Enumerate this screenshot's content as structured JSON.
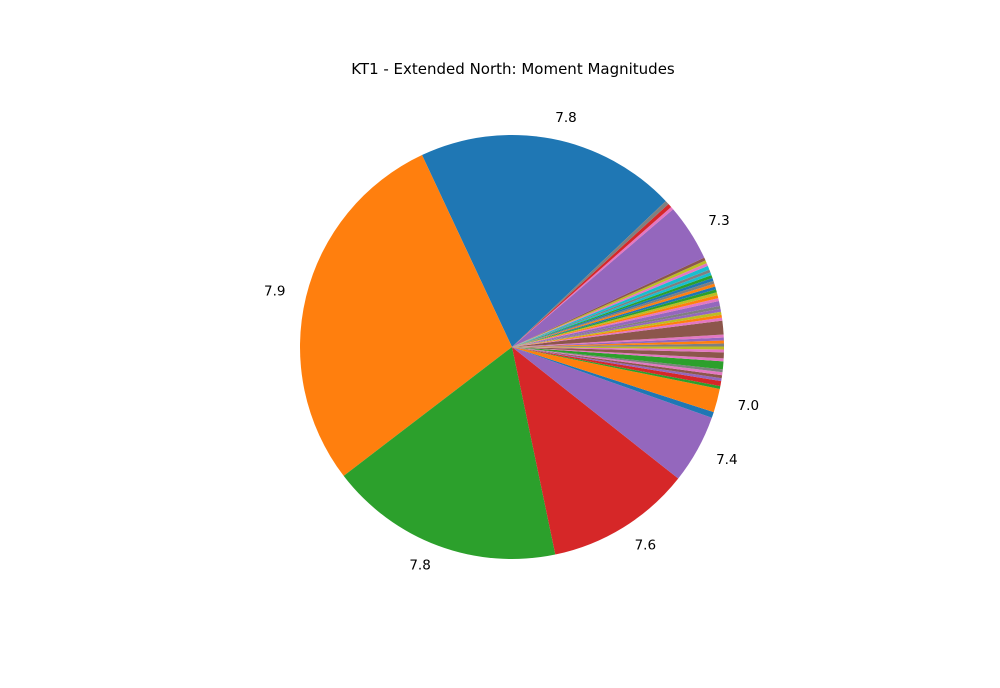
{
  "chart_data": {
    "type": "pie",
    "title": "KT1 - Extended North: Moment Magnitudes",
    "start_angle_deg": 43.5,
    "direction": "counterclockwise",
    "wedges": [
      {
        "value": 26.6,
        "label": "7.8",
        "color": "#1f77b4"
      },
      {
        "value": 38.0,
        "label": "7.9",
        "color": "#ff7f0e"
      },
      {
        "value": 23.9,
        "label": "7.8",
        "color": "#2ca02c"
      },
      {
        "value": 14.8,
        "label": "7.6",
        "color": "#d62728"
      },
      {
        "value": 7.0,
        "label": "7.4",
        "color": "#9467bd"
      },
      {
        "value": 0.6,
        "label": "",
        "color": "#1f77b4"
      },
      {
        "value": 2.4,
        "label": "7.0",
        "color": "#ff7f0e"
      },
      {
        "value": 0.3,
        "label": "",
        "color": "#2ca02c"
      },
      {
        "value": 0.5,
        "label": "",
        "color": "#d62728"
      },
      {
        "value": 0.3,
        "label": "",
        "color": "#9467bd"
      },
      {
        "value": 0.3,
        "label": "",
        "color": "#8c564b"
      },
      {
        "value": 0.3,
        "label": "",
        "color": "#e377c2"
      },
      {
        "value": 0.3,
        "label": "",
        "color": "#7f7f7f"
      },
      {
        "value": 0.8,
        "label": "",
        "color": "#2ca02c"
      },
      {
        "value": 0.3,
        "label": "",
        "color": "#e377c2"
      },
      {
        "value": 0.6,
        "label": "",
        "color": "#8c564b"
      },
      {
        "value": 0.3,
        "label": "",
        "color": "#e377c2"
      },
      {
        "value": 0.3,
        "label": "",
        "color": "#bcbd22"
      },
      {
        "value": 0.3,
        "label": "",
        "color": "#7f7f7f"
      },
      {
        "value": 0.3,
        "label": "",
        "color": "#ff7f0e"
      },
      {
        "value": 0.3,
        "label": "",
        "color": "#9467bd"
      },
      {
        "value": 0.3,
        "label": "",
        "color": "#e377c2"
      },
      {
        "value": 1.4,
        "label": "",
        "color": "#8c564b"
      },
      {
        "value": 0.3,
        "label": "",
        "color": "#e377c2"
      },
      {
        "value": 0.3,
        "label": "",
        "color": "#ff7f0e"
      },
      {
        "value": 0.3,
        "label": "",
        "color": "#bcbd22"
      },
      {
        "value": 0.3,
        "label": "",
        "color": "#9467bd"
      },
      {
        "value": 0.3,
        "label": "",
        "color": "#7f7f7f"
      },
      {
        "value": 0.5,
        "label": "",
        "color": "#9467bd"
      },
      {
        "value": 0.3,
        "label": "",
        "color": "#e377c2"
      },
      {
        "value": 0.3,
        "label": "",
        "color": "#ff7f0e"
      },
      {
        "value": 0.3,
        "label": "",
        "color": "#bcbd22"
      },
      {
        "value": 0.3,
        "label": "",
        "color": "#2ca02c"
      },
      {
        "value": 0.3,
        "label": "",
        "color": "#1f77b4"
      },
      {
        "value": 0.3,
        "label": "",
        "color": "#ff7f0e"
      },
      {
        "value": 0.3,
        "label": "",
        "color": "#7f7f7f"
      },
      {
        "value": 0.3,
        "label": "",
        "color": "#1f77b4"
      },
      {
        "value": 0.3,
        "label": "",
        "color": "#2ca02c"
      },
      {
        "value": 0.3,
        "label": "",
        "color": "#17becf"
      },
      {
        "value": 0.3,
        "label": "",
        "color": "#7f7f7f"
      },
      {
        "value": 0.4,
        "label": "",
        "color": "#17becf"
      },
      {
        "value": 0.3,
        "label": "",
        "color": "#e377c2"
      },
      {
        "value": 0.3,
        "label": "",
        "color": "#bcbd22"
      },
      {
        "value": 0.3,
        "label": "",
        "color": "#8c564b"
      },
      {
        "value": 5.8,
        "label": "7.3",
        "color": "#9467bd"
      },
      {
        "value": 0.3,
        "label": "",
        "color": "#e377c2"
      },
      {
        "value": 0.4,
        "label": "",
        "color": "#d62728"
      },
      {
        "value": 0.4,
        "label": "",
        "color": "#7f7f7f"
      }
    ]
  }
}
